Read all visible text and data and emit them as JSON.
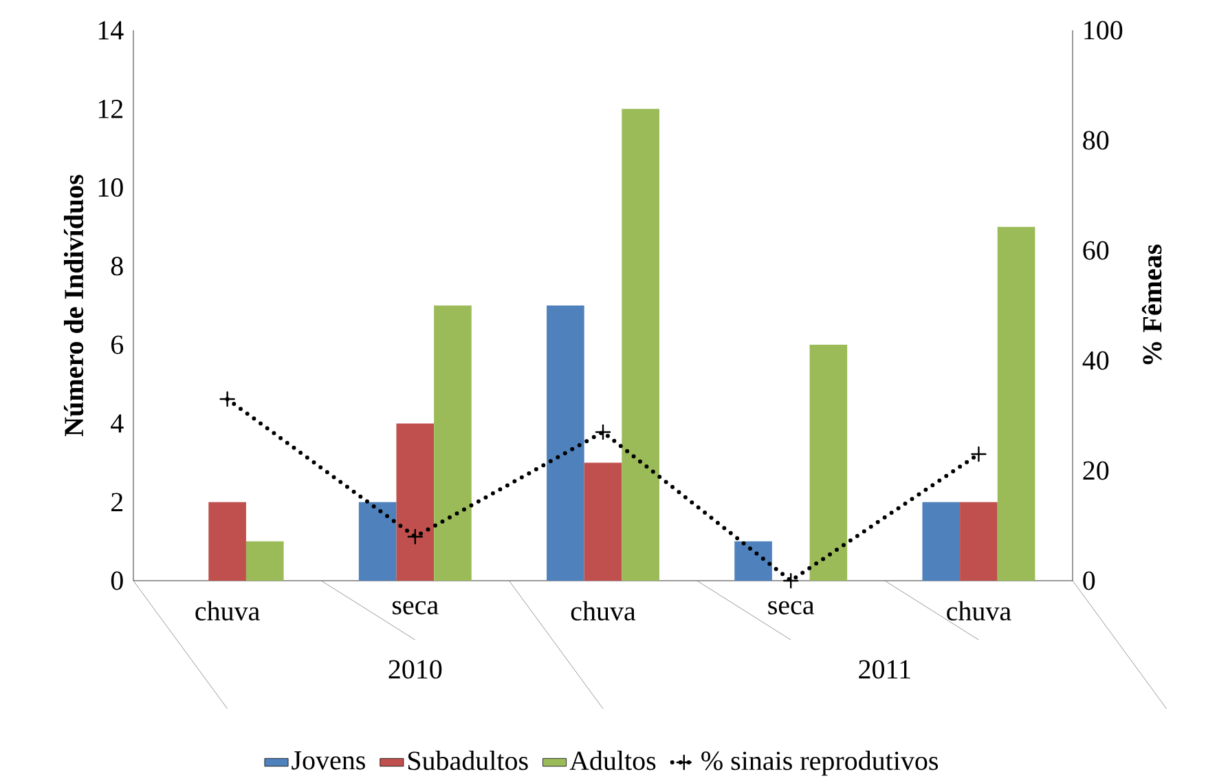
{
  "chart_data": {
    "type": "bar",
    "ylabel": "Número de Indivíduos",
    "y2label": "% Fêmeas",
    "categories": [
      "chuva",
      "seca",
      "chuva",
      "seca",
      "chuva"
    ],
    "annotations": [
      "2010",
      "2011"
    ],
    "series": [
      {
        "name": "Jovens",
        "color": "#4f81bd",
        "values": [
          0,
          2,
          7,
          1,
          2
        ]
      },
      {
        "name": "Subadultos",
        "color": "#c0504d",
        "values": [
          2,
          4,
          3,
          0,
          2
        ]
      },
      {
        "name": "Adultos",
        "color": "#9bbb59",
        "values": [
          1,
          7,
          12,
          6,
          9
        ]
      },
      {
        "name": "% sinais reprodutivos",
        "type": "line",
        "axis": "y2",
        "color": "#000000",
        "marker": "cross",
        "line_style": "dotted",
        "values": [
          33,
          8,
          27,
          0,
          23
        ]
      }
    ],
    "ylim": [
      0,
      14
    ],
    "yticks": [
      0,
      2,
      4,
      6,
      8,
      10,
      12,
      14
    ],
    "y2lim": [
      0,
      100
    ],
    "y2ticks": [
      0,
      20,
      40,
      60,
      80,
      100
    ],
    "grid": false,
    "legend": "bottom"
  }
}
